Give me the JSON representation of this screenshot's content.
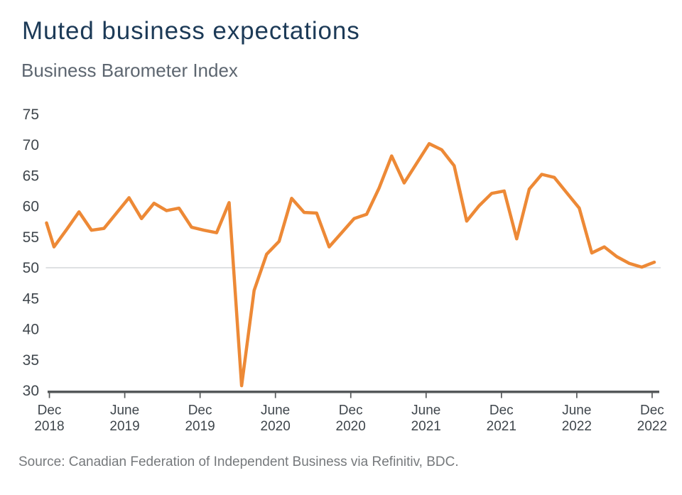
{
  "title": "Muted business expectations",
  "subtitle": "Business Barometer Index",
  "source": "Source: Canadian Federation of Independent Business via Refinitiv, BDC.",
  "chart_data": {
    "type": "line",
    "title": "Business Barometer Index",
    "x": [
      "Dec 2018",
      "Jan 2019",
      "Feb 2019",
      "Mar 2019",
      "Apr 2019",
      "May 2019",
      "Jun 2019",
      "Jul 2019",
      "Aug 2019",
      "Sep 2019",
      "Oct 2019",
      "Nov 2019",
      "Dec 2019",
      "Jan 2020",
      "Feb 2020",
      "Mar 2020",
      "Apr 2020",
      "May 2020",
      "Jun 2020",
      "Jul 2020",
      "Aug 2020",
      "Sep 2020",
      "Oct 2020",
      "Nov 2020",
      "Dec 2020",
      "Jan 2021",
      "Feb 2021",
      "Mar 2021",
      "Apr 2021",
      "May 2021",
      "Jun 2021",
      "Jul 2021",
      "Aug 2021",
      "Sep 2021",
      "Oct 2021",
      "Nov 2021",
      "Dec 2021",
      "Jan 2022",
      "Feb 2022",
      "Mar 2022",
      "Apr 2022",
      "May 2022",
      "Jun 2022",
      "Jul 2022",
      "Aug 2022",
      "Sep 2022",
      "Oct 2022",
      "Nov 2022",
      "Dec 2022"
    ],
    "values": [
      53.4,
      56.2,
      59.1,
      56.1,
      56.4,
      58.9,
      61.4,
      58.0,
      60.5,
      59.3,
      59.7,
      56.6,
      56.1,
      55.7,
      60.6,
      30.8,
      46.3,
      52.2,
      54.3,
      61.3,
      59.0,
      58.9,
      53.4,
      55.7,
      58.0,
      58.7,
      63.0,
      68.2,
      63.8,
      67.0,
      70.2,
      69.2,
      66.6,
      57.6,
      60.1,
      62.1,
      62.5,
      54.7,
      62.8,
      65.2,
      64.7,
      62.2,
      59.7,
      52.4,
      53.4,
      51.8,
      50.7,
      50.1,
      50.9
    ],
    "left_edge_entry_value": 57.3,
    "ylim": [
      30,
      75
    ],
    "y_ticks": [
      30,
      35,
      40,
      45,
      50,
      55,
      60,
      65,
      70,
      75
    ],
    "x_tick_labels": [
      {
        "month": "Dec",
        "year": "2018"
      },
      {
        "month": "June",
        "year": "2019"
      },
      {
        "month": "Dec",
        "year": "2019"
      },
      {
        "month": "June",
        "year": "2020"
      },
      {
        "month": "Dec",
        "year": "2020"
      },
      {
        "month": "June",
        "year": "2021"
      },
      {
        "month": "Dec",
        "year": "2021"
      },
      {
        "month": "June",
        "year": "2022"
      },
      {
        "month": "Dec",
        "year": "2022"
      }
    ],
    "reference_line": 50,
    "line_color": "#ED8936",
    "grid": "single horizontal reference line at 50",
    "legend_position": "none"
  }
}
